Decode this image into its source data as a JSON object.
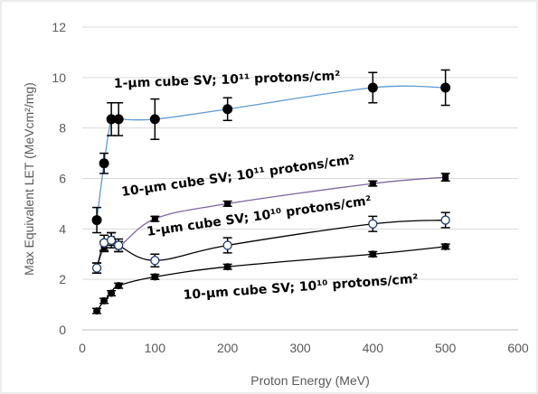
{
  "chart_data": {
    "type": "scatter",
    "xlabel": "Proton Energy (MeV)",
    "ylabel": "Max Equivalent LET (MeVcm²/mg)",
    "xlim": [
      0,
      600
    ],
    "ylim": [
      0,
      12
    ],
    "xticks": [
      0,
      100,
      200,
      300,
      400,
      500,
      600
    ],
    "yticks": [
      0,
      2,
      4,
      6,
      8,
      10,
      12
    ],
    "xtick_labels": [
      "0",
      "100",
      "200",
      "300",
      "400",
      "500",
      "600"
    ],
    "ytick_labels": [
      "0",
      "2",
      "4",
      "6",
      "8",
      "10",
      "12"
    ],
    "grid": "horizontal major",
    "legend": "none",
    "annotations": [
      {
        "text": "1-µm cube SV; 10¹¹ protons/cm²",
        "series_index": 0
      },
      {
        "text": "10-µm cube SV; 10¹¹ protons/cm²",
        "series_index": 1
      },
      {
        "text": "1-µm cube SV; 10¹⁰ protons/cm²",
        "series_index": 2
      },
      {
        "text": "10-µm cube SV; 10¹⁰ protons/cm²",
        "series_index": 3
      }
    ],
    "series": [
      {
        "marker": "filled-circle",
        "line_color": "#5B9BD5",
        "x": [
          20,
          30,
          40,
          50,
          100,
          200,
          400,
          500
        ],
        "y": [
          4.35,
          6.6,
          8.35,
          8.35,
          8.35,
          8.75,
          9.6,
          9.6
        ],
        "err": [
          0.5,
          0.4,
          0.65,
          0.65,
          0.8,
          0.45,
          0.6,
          0.7
        ]
      },
      {
        "marker": "filled-square",
        "line_color": "#8064A2",
        "x": [
          20,
          30,
          40,
          50,
          100,
          200,
          400,
          500
        ],
        "y": [
          2.45,
          3.3,
          3.6,
          3.3,
          4.4,
          5.0,
          5.8,
          6.05
        ],
        "err": [
          0.2,
          0.2,
          0.25,
          0.2,
          0.1,
          0.1,
          0.1,
          0.15
        ]
      },
      {
        "marker": "open-circle",
        "line_color": "#000000",
        "x": [
          20,
          30,
          40,
          50,
          100,
          200,
          400,
          500
        ],
        "y": [
          2.45,
          3.45,
          3.55,
          3.35,
          2.75,
          3.35,
          4.2,
          4.35
        ],
        "err": [
          0.2,
          0.3,
          0.3,
          0.25,
          0.25,
          0.3,
          0.3,
          0.3
        ]
      },
      {
        "marker": "filled-circle-small",
        "line_color": "#000000",
        "x": [
          20,
          30,
          40,
          50,
          100,
          200,
          400,
          500
        ],
        "y": [
          0.75,
          1.15,
          1.45,
          1.75,
          2.1,
          2.5,
          3.0,
          3.3
        ],
        "err": [
          0.1,
          0.1,
          0.1,
          0.1,
          0.1,
          0.1,
          0.1,
          0.1
        ]
      }
    ]
  }
}
